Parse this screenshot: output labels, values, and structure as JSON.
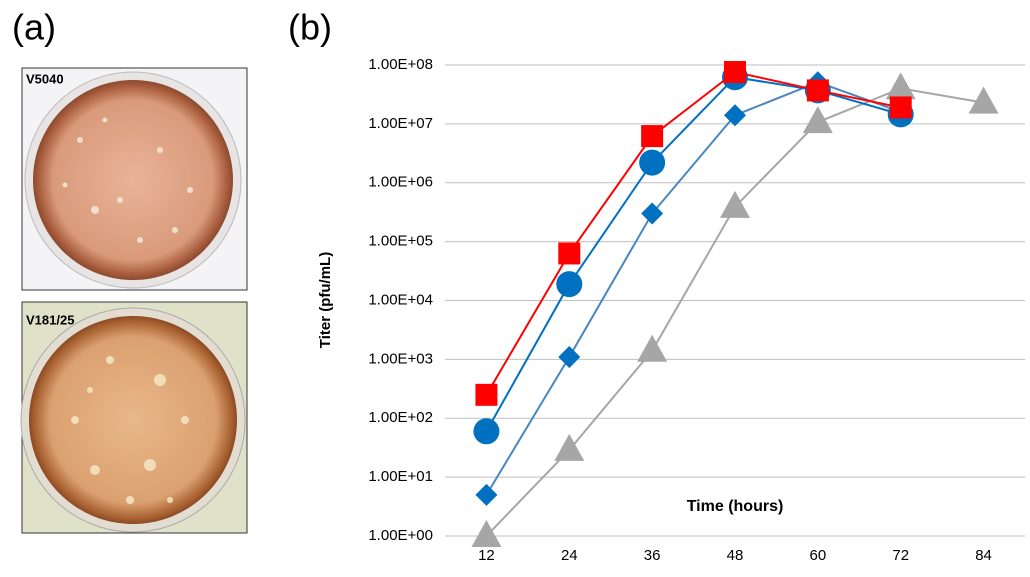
{
  "panels": [
    {
      "label": "(a)",
      "photos": [
        "V5040",
        "V181/25"
      ]
    },
    {
      "label": "(b)"
    }
  ],
  "chart_data": {
    "type": "line",
    "log_scale": true,
    "grid": true,
    "x_label": "Time (hours)",
    "y_label": "Titer (pfu/mL)",
    "x": [
      12,
      24,
      36,
      48,
      60,
      72,
      84
    ],
    "xlim": [
      6,
      90
    ],
    "xticks": [
      12,
      24,
      36,
      48,
      60,
      72,
      84
    ],
    "ylim": [
      1,
      100000000
    ],
    "yticks": [
      {
        "value": 1,
        "label": "1.00E+00"
      },
      {
        "value": 10,
        "label": "1.00E+01"
      },
      {
        "value": 100,
        "label": "1.00E+02"
      },
      {
        "value": 1000,
        "label": "1.00E+03"
      },
      {
        "value": 10000,
        "label": "1.00E+04"
      },
      {
        "value": 100000,
        "label": "1.00E+05"
      },
      {
        "value": 1000000,
        "label": "1.00E+06"
      },
      {
        "value": 10000000,
        "label": "1.00E+07"
      },
      {
        "value": 100000000,
        "label": "1.00E+08"
      }
    ],
    "series": [
      {
        "marker": "triangle",
        "color": "#a6a6a6",
        "values": [
          1,
          29,
          1400,
          390000,
          10700000,
          40000000,
          23000000
        ]
      },
      {
        "marker": "diamond",
        "color": "#0070c0",
        "line_color": "#4a86c0",
        "values": [
          5,
          1100,
          300000,
          14000000,
          51000000,
          16000000,
          null
        ]
      },
      {
        "marker": "circle",
        "color": "#0070c0",
        "values": [
          60,
          19000,
          2200000,
          62000000,
          37000000,
          14500000,
          null
        ]
      },
      {
        "marker": "square",
        "color": "#ff0000",
        "values": [
          250,
          63000,
          6200000,
          76000000,
          37000000,
          19000000,
          null
        ]
      }
    ]
  }
}
